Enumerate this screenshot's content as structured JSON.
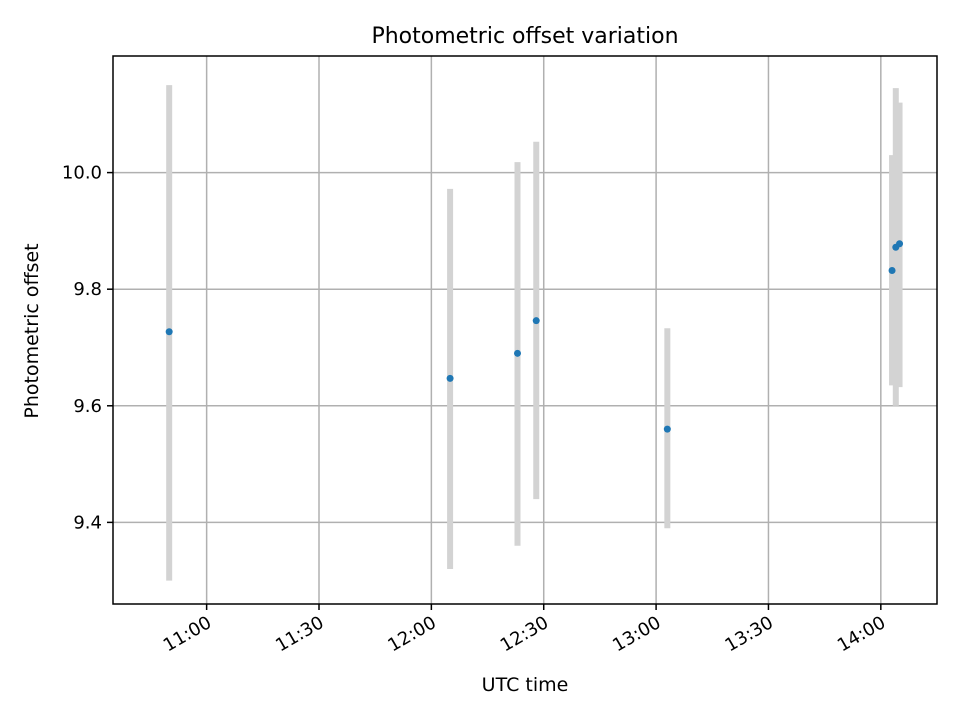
{
  "chart_data": {
    "type": "scatter",
    "title": "Photometric offset variation",
    "xlabel": "UTC time",
    "ylabel": "Photometric offset",
    "grid": true,
    "xlim": [
      "10:35",
      "14:15"
    ],
    "ylim": [
      9.26,
      10.2
    ],
    "x_ticks": [
      "11:00",
      "11:30",
      "12:00",
      "12:30",
      "13:00",
      "13:30",
      "14:00"
    ],
    "y_ticks": [
      9.4,
      9.6,
      9.8,
      10.0
    ],
    "y_tick_labels": [
      "9.4",
      "9.6",
      "9.8",
      "10.0"
    ],
    "series": [
      {
        "x": [
          "10:50",
          "12:05",
          "12:23",
          "12:28",
          "13:03",
          "14:03",
          "14:04",
          "14:05"
        ],
        "y": [
          9.727,
          9.647,
          9.69,
          9.746,
          9.56,
          9.832,
          9.872,
          9.878
        ],
        "yerr_low": [
          9.3,
          9.32,
          9.36,
          9.44,
          9.39,
          9.635,
          9.6,
          9.632
        ],
        "yerr_high": [
          10.15,
          9.972,
          10.018,
          10.053,
          9.733,
          10.03,
          10.145,
          10.12
        ],
        "marker_color": "#1f77b4",
        "errorbar_color": "#d3d3d3"
      }
    ]
  }
}
